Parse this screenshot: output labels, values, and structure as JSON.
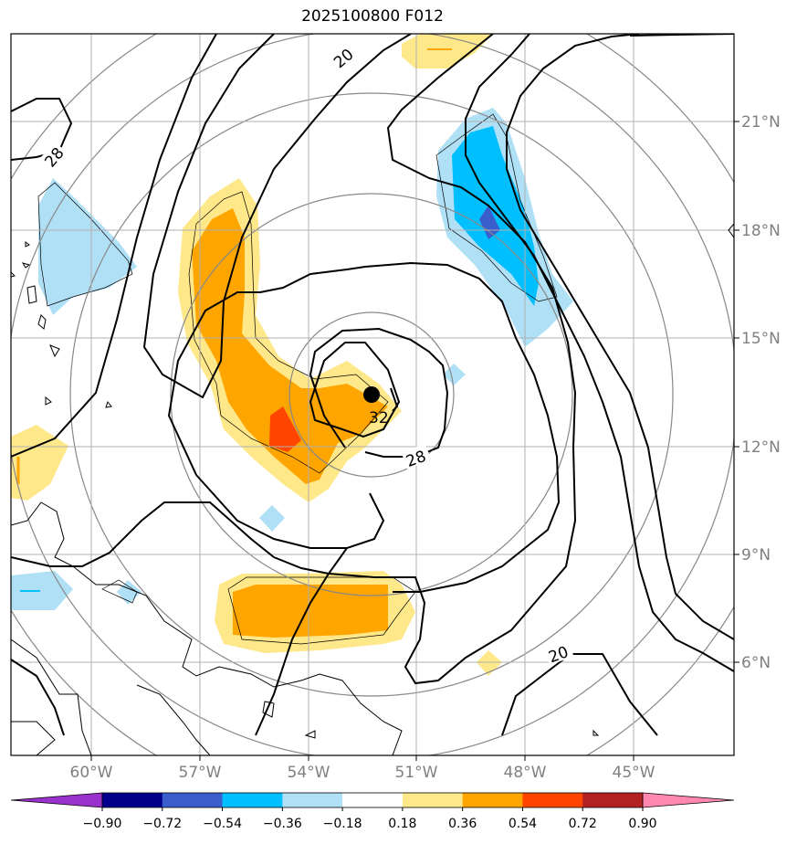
{
  "title": "2025100800 F012",
  "lat_labels": [
    "21°N",
    "18°N",
    "15°N",
    "12°N",
    "9°N",
    "6°N"
  ],
  "lon_labels": [
    "60°W",
    "57°W",
    "54°W",
    "51°W",
    "48°W",
    "45°W"
  ],
  "contour_labels": [
    "20",
    "28",
    "28",
    "32",
    "20"
  ],
  "colorbar": {
    "ticks": [
      "−0.90",
      "−0.72",
      "−0.54",
      "−0.36",
      "−0.18",
      "0.18",
      "0.36",
      "0.54",
      "0.72",
      "0.90"
    ],
    "colors": [
      "#9932CC",
      "#00008B",
      "#3A5FCD",
      "#00BFFF",
      "#B0E0F6",
      "#FFFFFF",
      "#FFE88A",
      "#FFA500",
      "#FF4500",
      "#B22222",
      "#FF88B0"
    ]
  },
  "center_marker_color": "#000000"
}
